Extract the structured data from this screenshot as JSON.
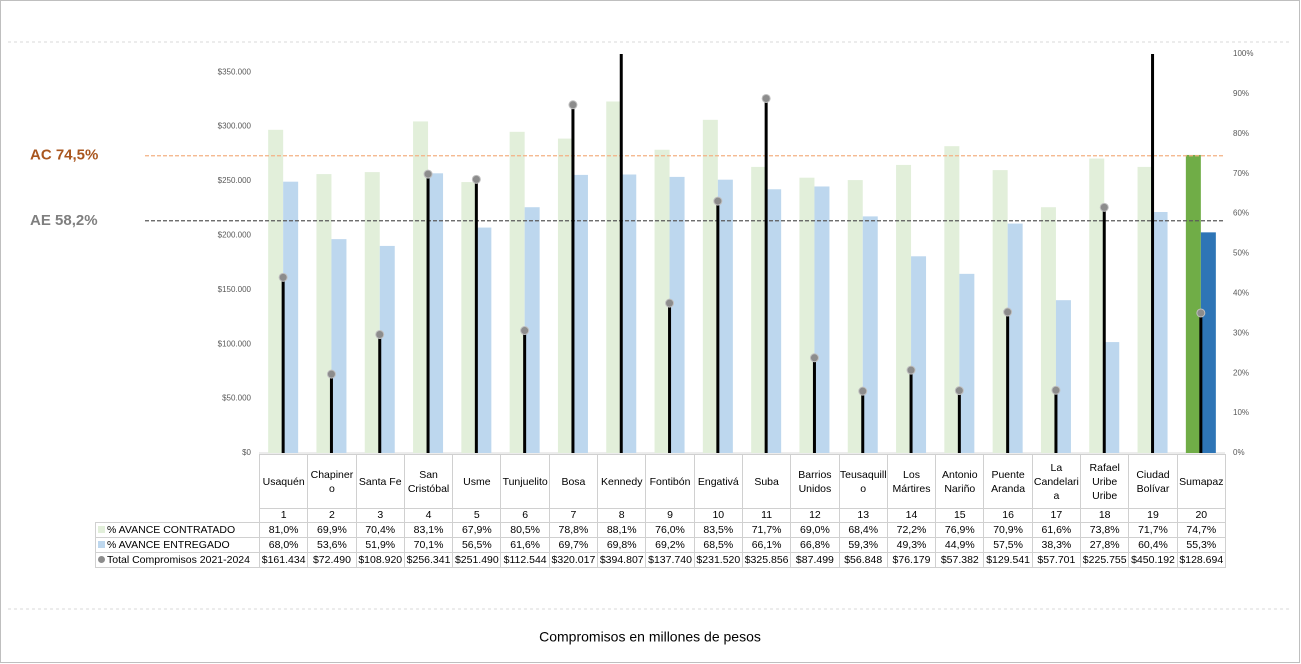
{
  "chart_data": {
    "type": "bar",
    "caption": "Compromisos en millones de pesos",
    "categories": [
      "Usaquén",
      "Chapinero",
      "Santa Fe",
      "San Cristóbal",
      "Usme",
      "Tunjuelito",
      "Bosa",
      "Kennedy",
      "Fontibón",
      "Engativá",
      "Suba",
      "Barrios Unidos",
      "Teusaquillo",
      "Los Mártires",
      "Antonio Nariño",
      "Puente Aranda",
      "La Candelaria",
      "Rafael Uribe Uribe",
      "Ciudad Bolívar",
      "Sumapaz"
    ],
    "category_numbers": [
      1,
      2,
      3,
      4,
      5,
      6,
      7,
      8,
      9,
      10,
      11,
      12,
      13,
      14,
      15,
      16,
      17,
      18,
      19,
      20
    ],
    "series": [
      {
        "name": "% AVANCE CONTRATADO",
        "type": "bar",
        "axis": "y2",
        "color": "#e2efda",
        "highlight_color": "#70ad47",
        "values": [
          81.0,
          69.9,
          70.4,
          83.1,
          67.9,
          80.5,
          78.8,
          88.1,
          76.0,
          83.5,
          71.7,
          69.0,
          68.4,
          72.2,
          76.9,
          70.9,
          61.6,
          73.8,
          71.7,
          74.7
        ],
        "value_labels": [
          "81,0%",
          "69,9%",
          "70,4%",
          "83,1%",
          "67,9%",
          "80,5%",
          "78,8%",
          "88,1%",
          "76,0%",
          "83,5%",
          "71,7%",
          "69,0%",
          "68,4%",
          "72,2%",
          "76,9%",
          "70,9%",
          "61,6%",
          "73,8%",
          "71,7%",
          "74,7%"
        ]
      },
      {
        "name": "% AVANCE ENTREGADO",
        "type": "bar",
        "axis": "y2",
        "color": "#bdd7ee",
        "highlight_color": "#2e75b6",
        "values": [
          68.0,
          53.6,
          51.9,
          70.1,
          56.5,
          61.6,
          69.7,
          69.8,
          69.2,
          68.5,
          66.1,
          66.8,
          59.3,
          49.3,
          44.9,
          57.5,
          38.3,
          27.8,
          60.4,
          55.3
        ],
        "value_labels": [
          "68,0%",
          "53,6%",
          "51,9%",
          "70,1%",
          "56,5%",
          "61,6%",
          "69,7%",
          "69,8%",
          "69,2%",
          "68,5%",
          "66,1%",
          "66,8%",
          "59,3%",
          "49,3%",
          "44,9%",
          "57,5%",
          "38,3%",
          "27,8%",
          "60,4%",
          "55,3%"
        ]
      },
      {
        "name": "Total Compromisos 2021-2024",
        "type": "stem",
        "axis": "y",
        "color": "#000000",
        "marker_color": "#8c8c8c",
        "values": [
          161434,
          72490,
          108920,
          256341,
          251490,
          112544,
          320017,
          394807,
          137740,
          231520,
          325856,
          87499,
          56848,
          76179,
          57382,
          129541,
          57701,
          225755,
          450192,
          128694
        ],
        "value_labels": [
          "$161.434",
          "$72.490",
          "$108.920",
          "$256.341",
          "$251.490",
          "$112.544",
          "$320.017",
          "$394.807",
          "$137.740",
          "$231.520",
          "$325.856",
          "$87.499",
          "$56.848",
          "$76.179",
          "$57.382",
          "$129.541",
          "$57.701",
          "$225.755",
          "$450.192",
          "$128.694"
        ]
      }
    ],
    "ylim": [
      0,
      366700
    ],
    "yticks": [
      {
        "value": 0,
        "label": "$0"
      },
      {
        "value": 50000,
        "label": "$50.000"
      },
      {
        "value": 100000,
        "label": "$100.000"
      },
      {
        "value": 150000,
        "label": "$150.000"
      },
      {
        "value": 200000,
        "label": "$200.000"
      },
      {
        "value": 250000,
        "label": "$250.000"
      },
      {
        "value": 300000,
        "label": "$300.000"
      },
      {
        "value": 350000,
        "label": "$350.000"
      }
    ],
    "y2lim": [
      0,
      100
    ],
    "y2ticks": [
      {
        "value": 0,
        "label": "0%"
      },
      {
        "value": 10,
        "label": "10%"
      },
      {
        "value": 20,
        "label": "20%"
      },
      {
        "value": 30,
        "label": "30%"
      },
      {
        "value": 40,
        "label": "40%"
      },
      {
        "value": 50,
        "label": "50%"
      },
      {
        "value": 60,
        "label": "60%"
      },
      {
        "value": 70,
        "label": "70%"
      },
      {
        "value": 80,
        "label": "80%"
      },
      {
        "value": 90,
        "label": "90%"
      },
      {
        "value": 100,
        "label": "100%"
      }
    ],
    "reference_lines": [
      {
        "label": "AC 74,5%",
        "value": 74.5,
        "color": "#f4b183",
        "label_color": "#a9561e"
      },
      {
        "label": "AE 58,2%",
        "value": 58.2,
        "color": "#595959",
        "label_color": "#7f7f7f"
      }
    ]
  }
}
